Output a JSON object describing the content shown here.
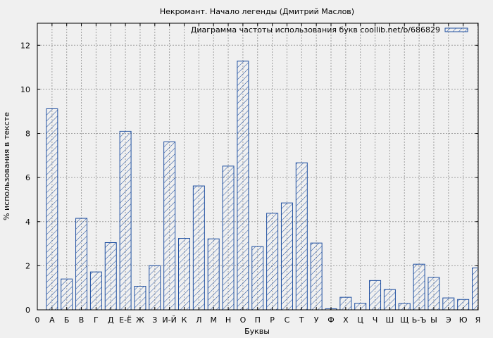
{
  "chart_data": {
    "type": "bar",
    "title": "Некромант. Начало легенды (Дмитрий Маслов)",
    "xlabel": "Буквы",
    "ylabel": "% использования в тексте",
    "ylim": [
      0,
      13
    ],
    "yticks": [
      0,
      2,
      4,
      6,
      8,
      10,
      12
    ],
    "grid": true,
    "legend_position": "top-right",
    "x_ticks": [
      "0",
      "А",
      "Б",
      "В",
      "Г",
      "Д",
      "Е-Ё",
      "Ж",
      "З",
      "И-Й",
      "К",
      "Л",
      "М",
      "Н",
      "О",
      "П",
      "Р",
      "С",
      "Т",
      "У",
      "Ф",
      "Х",
      "Ц",
      "Ч",
      "Ш",
      "Щ",
      "Ь-Ъ",
      "Ы",
      "Э",
      "Ю",
      "Я"
    ],
    "categories": [
      "А",
      "Б",
      "В",
      "Г",
      "Д",
      "Е-Ё",
      "Ж",
      "З",
      "И-Й",
      "К",
      "Л",
      "М",
      "Н",
      "О",
      "П",
      "Р",
      "С",
      "Т",
      "У",
      "Ф",
      "Х",
      "Ц",
      "Ч",
      "Ш",
      "Щ",
      "Ь-Ъ",
      "Ы",
      "Э",
      "Ю",
      "Я"
    ],
    "series": [
      {
        "name": "Диаграмма частоты использования букв coollib.net/b/686829",
        "values": [
          9.12,
          1.4,
          4.15,
          1.72,
          3.05,
          8.1,
          1.07,
          2.0,
          7.62,
          3.24,
          5.62,
          3.22,
          6.52,
          11.28,
          2.87,
          4.38,
          4.85,
          6.67,
          3.03,
          0.05,
          0.57,
          0.3,
          1.33,
          0.92,
          0.29,
          2.07,
          1.47,
          0.54,
          0.47,
          1.9
        ]
      }
    ],
    "colors": {
      "bar_stroke": "#1f4fa0",
      "background": "#f0f0f0",
      "grid": "#a0a0a0"
    }
  }
}
